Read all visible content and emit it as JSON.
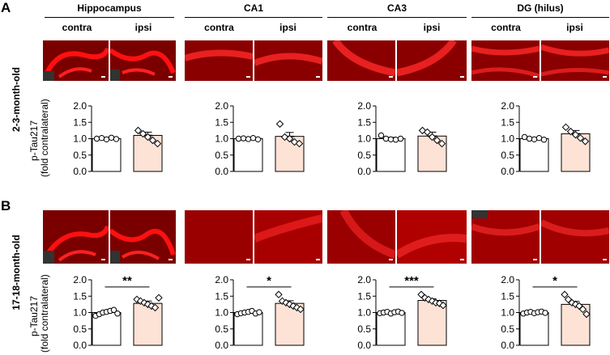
{
  "panels": [
    {
      "letter": "A",
      "age_label": "2-3-month-old"
    },
    {
      "letter": "B",
      "age_label": "17-18-month-old"
    }
  ],
  "regions": [
    "Hippocampus",
    "CA1",
    "CA3",
    "DG (hilus)"
  ],
  "conditions": [
    "contra",
    "ipsi"
  ],
  "y_axis_label": [
    "p-Tau217",
    "(fold contralateral)"
  ],
  "colors": {
    "contra_fill": "#ffffff",
    "ipsi_fill": "#fde3d6",
    "stain": "#d40000",
    "stain_dark": "#3a0000"
  },
  "chart_data": [
    {
      "type": "bar",
      "panel": "A",
      "region": "Hippocampus",
      "categories": [
        "contra",
        "ipsi"
      ],
      "ylim": [
        0,
        2.0
      ],
      "yticks": [
        "0.0",
        "0.5",
        "1.0",
        "1.5",
        "2.0"
      ],
      "values": [
        1.0,
        1.1
      ],
      "errors": [
        0.03,
        0.1
      ],
      "points": [
        [
          1.0,
          1.02,
          0.98,
          1.03,
          0.99
        ],
        [
          1.25,
          1.15,
          1.05,
          0.95,
          0.85
        ]
      ],
      "significance": ""
    },
    {
      "type": "bar",
      "panel": "A",
      "region": "CA1",
      "categories": [
        "contra",
        "ipsi"
      ],
      "ylim": [
        0,
        2.0
      ],
      "yticks": [
        "0.0",
        "0.5",
        "1.0",
        "1.5",
        "2.0"
      ],
      "values": [
        1.0,
        1.07
      ],
      "errors": [
        0.02,
        0.12
      ],
      "points": [
        [
          1.0,
          1.01,
          0.99,
          1.02,
          0.98
        ],
        [
          1.45,
          1.05,
          1.0,
          0.9,
          0.85
        ]
      ],
      "significance": ""
    },
    {
      "type": "bar",
      "panel": "A",
      "region": "CA3",
      "categories": [
        "contra",
        "ipsi"
      ],
      "ylim": [
        0,
        2.0
      ],
      "yticks": [
        "0.0",
        "0.5",
        "1.0",
        "1.5",
        "2.0"
      ],
      "values": [
        1.0,
        1.08
      ],
      "errors": [
        0.04,
        0.12
      ],
      "points": [
        [
          1.1,
          1.0,
          0.98,
          0.97,
          1.0
        ],
        [
          1.25,
          1.2,
          1.05,
          0.95,
          0.85
        ]
      ],
      "significance": ""
    },
    {
      "type": "bar",
      "panel": "A",
      "region": "DG (hilus)",
      "categories": [
        "contra",
        "ipsi"
      ],
      "ylim": [
        0,
        2.0
      ],
      "yticks": [
        "0.0",
        "0.5",
        "1.0",
        "1.5",
        "2.0"
      ],
      "values": [
        1.0,
        1.15
      ],
      "errors": [
        0.03,
        0.1
      ],
      "points": [
        [
          1.05,
          1.0,
          0.98,
          1.02,
          0.97
        ],
        [
          1.35,
          1.22,
          1.12,
          1.02,
          0.92
        ]
      ],
      "significance": ""
    },
    {
      "type": "bar",
      "panel": "B",
      "region": "Hippocampus",
      "categories": [
        "contra",
        "ipsi"
      ],
      "ylim": [
        0,
        2.0
      ],
      "yticks": [
        "0.0",
        "0.5",
        "1.0",
        "1.5",
        "2.0"
      ],
      "values": [
        1.0,
        1.28
      ],
      "errors": [
        0.04,
        0.07
      ],
      "points": [
        [
          0.9,
          0.95,
          1.0,
          1.02,
          1.05,
          1.08,
          0.97
        ],
        [
          1.4,
          1.35,
          1.3,
          1.25,
          1.2,
          1.15,
          1.45
        ]
      ],
      "significance": "**"
    },
    {
      "type": "bar",
      "panel": "B",
      "region": "CA1",
      "categories": [
        "contra",
        "ipsi"
      ],
      "ylim": [
        0,
        2.0
      ],
      "yticks": [
        "0.0",
        "0.5",
        "1.0",
        "1.5",
        "2.0"
      ],
      "values": [
        1.0,
        1.28
      ],
      "errors": [
        0.03,
        0.08
      ],
      "points": [
        [
          0.95,
          0.98,
          1.0,
          1.02,
          1.05,
          0.97,
          1.01
        ],
        [
          1.55,
          1.35,
          1.3,
          1.25,
          1.2,
          1.15,
          1.1
        ]
      ],
      "significance": "*"
    },
    {
      "type": "bar",
      "panel": "B",
      "region": "CA3",
      "categories": [
        "contra",
        "ipsi"
      ],
      "ylim": [
        0,
        2.0
      ],
      "yticks": [
        "0.0",
        "0.5",
        "1.0",
        "1.5",
        "2.0"
      ],
      "values": [
        1.0,
        1.37
      ],
      "errors": [
        0.02,
        0.05
      ],
      "points": [
        [
          0.98,
          1.0,
          1.02,
          0.97,
          1.01,
          1.03,
          0.99
        ],
        [
          1.55,
          1.45,
          1.4,
          1.35,
          1.3,
          1.28,
          1.22
        ]
      ],
      "significance": "***"
    },
    {
      "type": "bar",
      "panel": "B",
      "region": "DG (hilus)",
      "categories": [
        "contra",
        "ipsi"
      ],
      "ylim": [
        0,
        2.0
      ],
      "yticks": [
        "0.0",
        "0.5",
        "1.0",
        "1.5",
        "2.0"
      ],
      "values": [
        1.0,
        1.25
      ],
      "errors": [
        0.02,
        0.09
      ],
      "points": [
        [
          0.97,
          1.0,
          1.02,
          0.98,
          1.01,
          1.03,
          0.99
        ],
        [
          1.55,
          1.4,
          1.3,
          1.25,
          1.2,
          1.1,
          0.95
        ]
      ],
      "significance": "*"
    }
  ]
}
